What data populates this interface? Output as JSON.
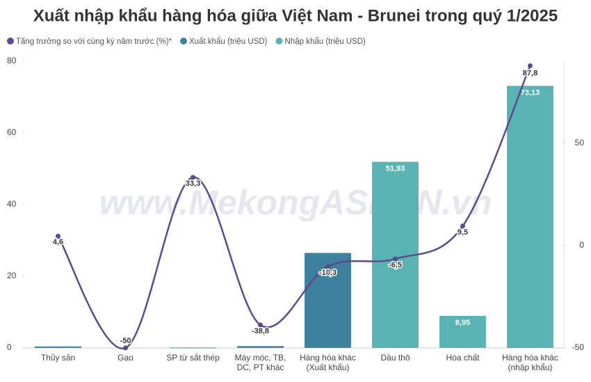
{
  "chart_data": {
    "type": "bar_line",
    "title": "Xuất nhập khẩu hàng hóa giữa Việt Nam - Brunei trong quý 1/2025",
    "watermark": "www.MekongASEAN.vn",
    "categories": [
      "Thủy sản",
      "Gạo",
      "SP từ sắt thép",
      "Máy móc, TB,\nDC, PT khác",
      "Hàng hóa khác\n(Xuất khẩu)",
      "Dầu thô",
      "Hóa chất",
      "Hàng hóa khác\n(nhập khẩu)"
    ],
    "series": [
      {
        "name": "Tăng trưởng so với cùng kỳ năm trước (%)*",
        "type": "line",
        "axis": "y2",
        "color": "#5b4a8c",
        "values": [
          4.6,
          -50,
          33.3,
          -38.8,
          -10.3,
          -6.5,
          9.5,
          87.8
        ],
        "value_labels": [
          "4,6",
          "-50",
          "33,3",
          "-38,8",
          "-10,3",
          "-6,5",
          "9,5",
          "87,8"
        ]
      },
      {
        "name": "Xuất khẩu (triệu USD)",
        "type": "bar",
        "color": "#40809f",
        "values": [
          0.4,
          null,
          0.1,
          0.5,
          26.5,
          null,
          null,
          null
        ]
      },
      {
        "name": "Nhập khẩu (triệu USD)",
        "type": "bar",
        "color": "#5ab3b3",
        "values": [
          null,
          null,
          null,
          null,
          null,
          51.93,
          8.95,
          73.13
        ],
        "value_labels": [
          null,
          null,
          null,
          null,
          null,
          "51,93",
          "8,95",
          "73,13"
        ]
      }
    ],
    "ylim": [
      0,
      80
    ],
    "yticks": [
      0,
      20,
      40,
      60,
      80
    ],
    "y2lim": [
      -50,
      90
    ],
    "y2ticks": [
      -50,
      0,
      50
    ],
    "grid": false
  }
}
